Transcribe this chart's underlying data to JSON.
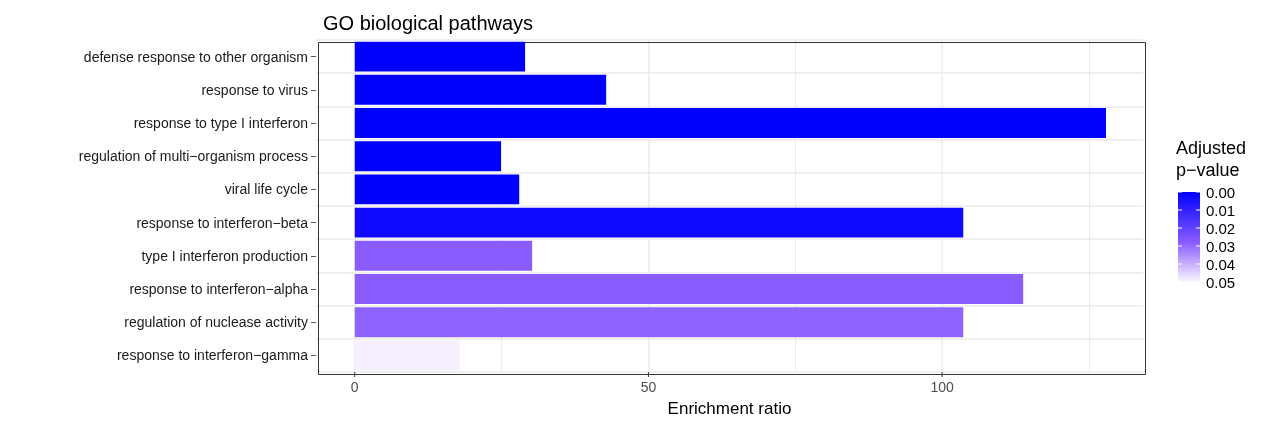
{
  "chart_data": {
    "type": "bar",
    "orientation": "horizontal",
    "title": "GO biological pathways",
    "xlabel": "Enrichment ratio",
    "clabel": "Adjusted\np−value",
    "categories": [
      "defense response to other organism",
      "response to virus",
      "response to type I interferon",
      "regulation of multi−organism process",
      "viral life cycle",
      "response to interferon−beta",
      "type I interferon production",
      "response to interferon−alpha",
      "regulation of nuclease activity",
      "response to interferon−gamma"
    ],
    "values": [
      29.0,
      42.8,
      127.9,
      24.9,
      28.0,
      103.6,
      30.2,
      113.8,
      103.6,
      17.8
    ],
    "cvalues": [
      0.0,
      0.0,
      0.0,
      0.0,
      0.0,
      0.003,
      0.028,
      0.028,
      0.029,
      0.049
    ],
    "clim": [
      0,
      0.05
    ],
    "cticks": [
      {
        "value": 0,
        "label": "0.00"
      },
      {
        "value": 0.01,
        "label": "0.01"
      },
      {
        "value": 0.02,
        "label": "0.02"
      },
      {
        "value": 0.03,
        "label": "0.03"
      },
      {
        "value": 0.04,
        "label": "0.04"
      },
      {
        "value": 0.05,
        "label": "0.05"
      }
    ],
    "xlim": [
      -6.6,
      134.2
    ],
    "xticks": [
      0,
      {
        "value": 25,
        "label": null
      },
      50,
      {
        "value": 75,
        "label": null
      },
      100,
      {
        "value": 125,
        "label": null
      }
    ],
    "grid": true
  }
}
